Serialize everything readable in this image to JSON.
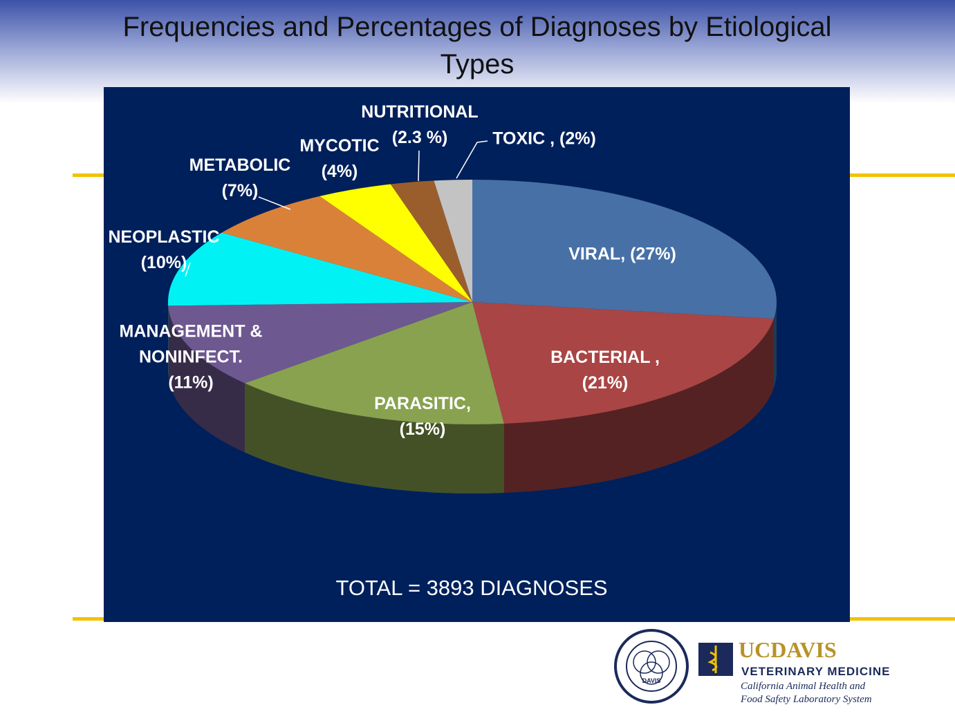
{
  "chart_data": {
    "type": "pie",
    "title": "Frequencies and Percentages of Diagnoses by Etiological Types",
    "categories": [
      "VIRAL,",
      "BACTERIAL ,",
      "PARASITIC,",
      "MANAGEMENT & NONINFECT.",
      "NEOPLASTIC",
      "METABOLIC",
      "MYCOTIC",
      "NUTRITIONAL",
      "TOXIC ,"
    ],
    "values": [
      27,
      21,
      15,
      11,
      10,
      7,
      4,
      2.3,
      2
    ],
    "value_labels": [
      "(27%)",
      "(21%)",
      "(15%)",
      "(11%)",
      "(10%)",
      "(7%)",
      "(4%)",
      "(2.3 %)",
      "(2%)"
    ],
    "colors": [
      "#4770a6",
      "#a94544",
      "#88a24f",
      "#6e5890",
      "#00f2f5",
      "#da8139",
      "#ffff00",
      "#9a5e2d",
      "#c3c3c3"
    ],
    "annotation": "TOTAL = 3893 DIAGNOSES"
  },
  "footer": {
    "brand": "UCDAVIS",
    "school": "VETERINARY MEDICINE",
    "lab_line1": "California Animal Health and",
    "lab_line2": "Food Safety Laboratory System",
    "seal": "DAVIS"
  }
}
